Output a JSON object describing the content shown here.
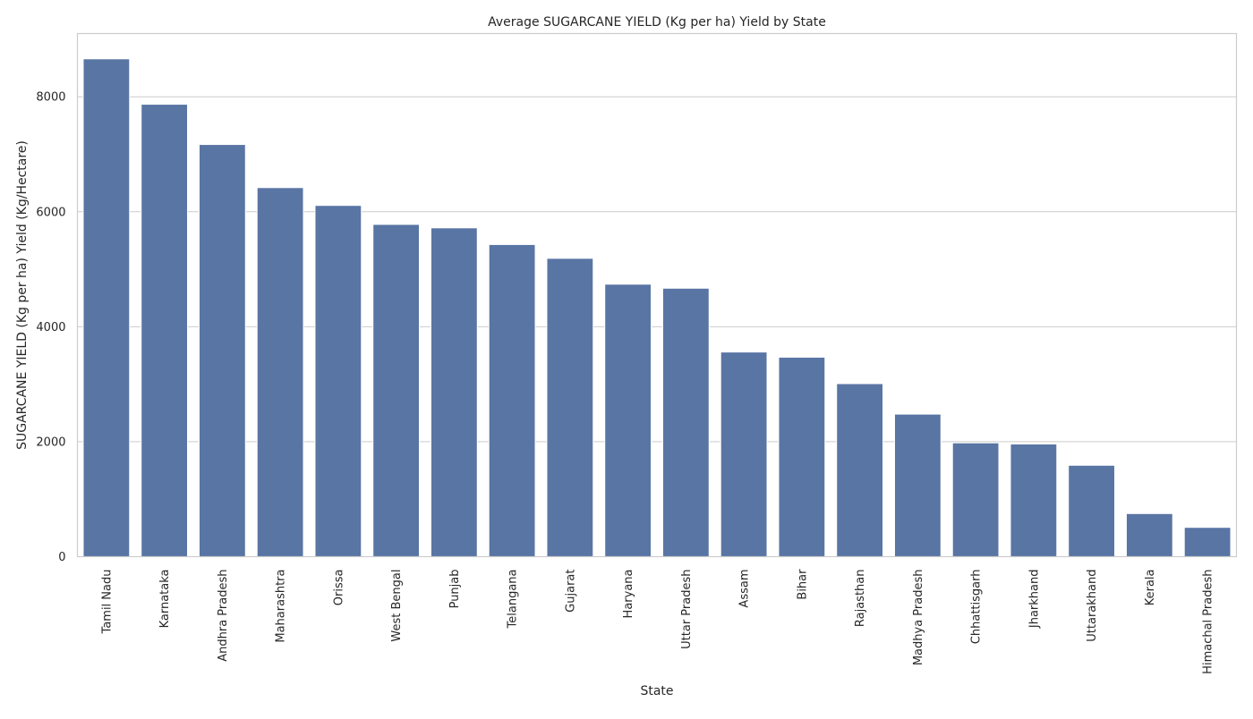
{
  "chart_data": {
    "type": "bar",
    "title": "Average SUGARCANE YIELD (Kg per ha) Yield by State",
    "xlabel": "State",
    "ylabel": "SUGARCANE YIELD (Kg per ha) Yield (Kg/Hectare)",
    "ylim": [
      0,
      9100
    ],
    "yticks": [
      0,
      2000,
      4000,
      6000,
      8000
    ],
    "grid": true,
    "categories": [
      "Tamil Nadu",
      "Karnataka",
      "Andhra Pradesh",
      "Maharashtra",
      "Orissa",
      "West Bengal",
      "Punjab",
      "Telangana",
      "Gujarat",
      "Haryana",
      "Uttar Pradesh",
      "Assam",
      "Bihar",
      "Rajasthan",
      "Madhya Pradesh",
      "Chhattisgarh",
      "Jharkhand",
      "Uttarakhand",
      "Kerala",
      "Himachal Pradesh"
    ],
    "values": [
      8660,
      7870,
      7170,
      6420,
      6110,
      5780,
      5720,
      5430,
      5190,
      4740,
      4670,
      3560,
      3470,
      3010,
      2480,
      1980,
      1960,
      1590,
      750,
      510
    ],
    "bar_color": "#5975a4"
  }
}
